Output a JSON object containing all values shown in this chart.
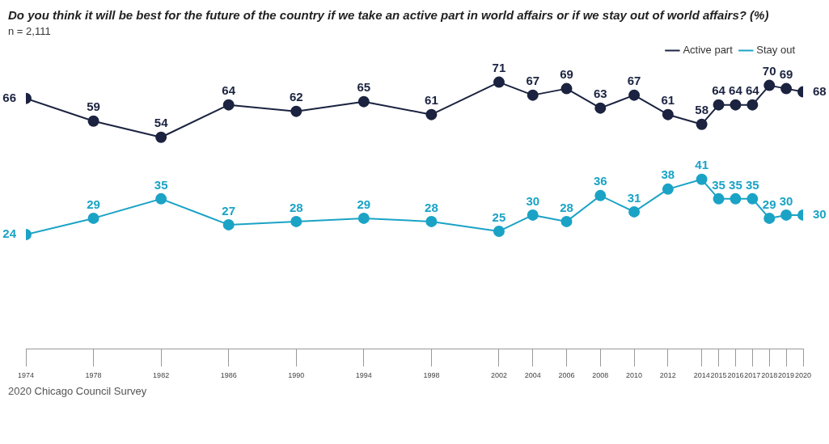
{
  "chart_data": {
    "type": "line",
    "title": "Do you think it will be best for the future of the country if we take an active part in world affairs or if we stay out of world affairs? (%)",
    "subtitle": "n = 2,111",
    "x": [
      1974,
      1978,
      1982,
      1986,
      1990,
      1994,
      1998,
      2002,
      2004,
      2006,
      2008,
      2010,
      2012,
      2014,
      2015,
      2016,
      2017,
      2018,
      2019,
      2020
    ],
    "xlim": [
      1974,
      2020
    ],
    "xticks": [
      1974,
      1978,
      1982,
      1986,
      1990,
      1994,
      1998,
      2002,
      2004,
      2006,
      2008,
      2010,
      2012,
      2014,
      2015,
      2016,
      2017,
      2018,
      2019,
      2020
    ],
    "series": [
      {
        "name": "Active part",
        "color": "#1b2340",
        "values": [
          66,
          59,
          54,
          64,
          62,
          65,
          61,
          71,
          67,
          69,
          63,
          67,
          61,
          58,
          64,
          64,
          64,
          70,
          69,
          68
        ]
      },
      {
        "name": "Stay out",
        "color": "#1ba3c6",
        "values": [
          24,
          29,
          35,
          27,
          28,
          29,
          28,
          25,
          30,
          28,
          36,
          31,
          38,
          41,
          35,
          35,
          35,
          29,
          30,
          30
        ]
      }
    ],
    "marker": "circle",
    "data_labels": true,
    "grid": false,
    "legend": "top right",
    "tick_labels": "x",
    "annotations": [
      "2020 Chicago Council Survey"
    ]
  }
}
